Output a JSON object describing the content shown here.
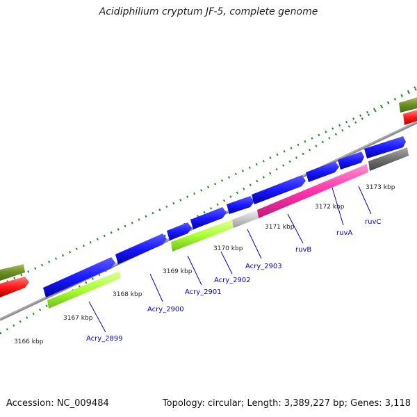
{
  "title": "Acidiphilium cryptum JF-5, complete genome",
  "footer": {
    "accession": "Accession: NC_009484",
    "summary": "Topology: circular; Length: 3,389,227 bp; Genes: 3,118"
  },
  "ticks": [
    "3166 kbp",
    "3167 kbp",
    "3168 kbp",
    "3169 kbp",
    "3170 kbp",
    "3171 kbp",
    "3172 kbp",
    "3173 kbp"
  ],
  "genes": [
    "Acry_2899",
    "Acry_2900",
    "Acry_2901",
    "Acry_2902",
    "Acry_2903",
    "ruvB",
    "ruvA",
    "ruvC"
  ],
  "colors": {
    "cds_forward": "#1a1aff",
    "gene_lime": "#aaff33",
    "gene_pink": "#ff33aa",
    "gene_grey_light": "#c8c8c8",
    "gene_grey_dark": "#707070",
    "olive": "#6b8e23",
    "red": "#ff1a1a",
    "backbone": "#8c8c8c",
    "tick_green": "#228b22",
    "label_blue": "#0000cc"
  }
}
